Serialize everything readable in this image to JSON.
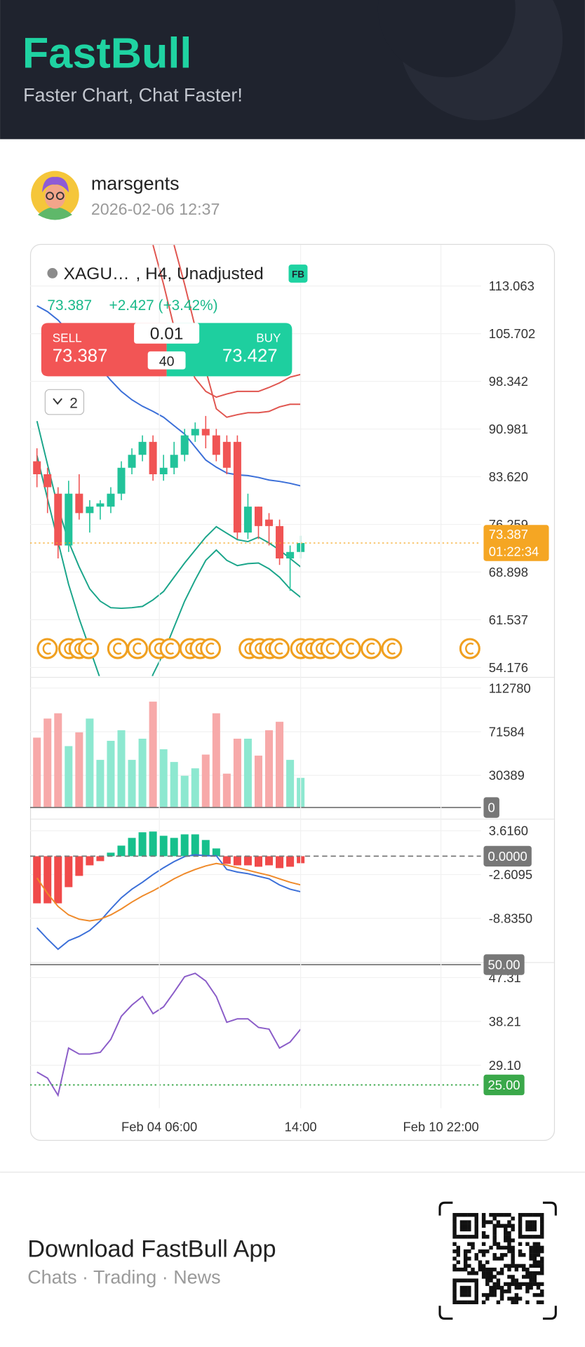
{
  "header": {
    "brand": "FastBull",
    "tagline": "Faster Chart, Chat Faster!"
  },
  "post": {
    "author": "marsgents",
    "timestamp": "2026-02-06 12:37"
  },
  "quote": {
    "symbol": "XAGU…",
    "details": ", H4, Unadjusted",
    "badge": "FB",
    "last": "73.387",
    "change": "+2.427 (+3.42%)",
    "sell_label": "SELL",
    "sell_price": "73.387",
    "buy_label": "BUY",
    "buy_price": "73.427",
    "lot": "0.01",
    "spread": "40",
    "indicator_count": "2"
  },
  "chart_data": {
    "type": "candlestick",
    "up_color": "#22c39a",
    "down_color": "#f05454",
    "xlim": [
      -0.65,
      42.1
    ],
    "xticks": [
      {
        "value": 11.6,
        "label": "Feb 04 06:00"
      },
      {
        "value": 25,
        "label": "14:00"
      },
      {
        "value": 38.3,
        "label": "Feb 10 22:00"
      }
    ],
    "ylim": [
      52.84,
      119.42
    ],
    "yticks": [
      113.063,
      105.702,
      98.342,
      90.981,
      {
        "value": 83.62,
        "label": "83.620"
      },
      76.259,
      68.898,
      61.537,
      54.176
    ],
    "last_price": {
      "value": 73.387,
      "countdown": "01:22:34",
      "color": "#f5a623"
    },
    "candles": {
      "open": [
        86,
        84,
        81,
        73,
        81,
        78,
        79,
        79,
        81,
        85,
        87,
        89,
        84,
        85,
        87,
        90,
        91,
        90,
        89,
        89,
        75,
        79,
        77,
        76,
        71,
        72
      ],
      "high": [
        88,
        85,
        82,
        83,
        84,
        80,
        80,
        82,
        86,
        88,
        90,
        90,
        87,
        89,
        91,
        92,
        93,
        91,
        90,
        90,
        81,
        79,
        78,
        77,
        73,
        74.5
      ],
      "low": [
        82,
        78,
        71,
        72,
        77,
        75,
        77,
        78,
        80,
        84,
        86,
        83,
        83,
        84,
        86,
        89,
        88,
        86,
        84,
        74,
        74,
        74,
        73,
        70,
        66,
        71
      ],
      "close": [
        84,
        82,
        73,
        81,
        78,
        79,
        79.5,
        81,
        85,
        87,
        89,
        84,
        85,
        87,
        90,
        91,
        90,
        87,
        85,
        75,
        79,
        76,
        76,
        71,
        72,
        73.387
      ]
    },
    "overlays": [
      {
        "color": "#3b6fd8",
        "values": [
          110.0,
          109.1,
          107.8,
          106.0,
          104.3,
          102.5,
          100.4,
          98.5,
          96.8,
          95.5,
          94.5,
          93.7,
          92.8,
          91.5,
          90.2,
          88.2,
          86.2,
          85.1,
          84.2,
          83.9,
          83.8,
          83.5,
          83.1,
          82.9,
          82.6,
          82.2
        ]
      },
      {
        "color": "#1aa58a",
        "values": [
          92.2,
          85.5,
          78.9,
          73.6,
          69.7,
          66.3,
          64.4,
          63.4,
          63.3,
          63.4,
          63.6,
          64.6,
          65.9,
          68.1,
          70.3,
          72.3,
          74.3,
          75.9,
          74.9,
          73.9,
          73.6,
          74.3,
          73.4,
          72.3,
          71.0,
          69.7
        ]
      },
      {
        "color": "#1aa58a",
        "values": [
          86.9,
          80.2,
          73.6,
          67.0,
          61.7,
          57.1,
          52.4,
          48.5,
          47.2,
          46.5,
          48.5,
          53.1,
          56.4,
          60.4,
          64.4,
          67.7,
          70.7,
          72.3,
          70.7,
          69.9,
          70.2,
          70.3,
          69.4,
          68.1,
          66.3,
          65.0
        ]
      },
      {
        "color": "#e0554f",
        "values": [
          null,
          null,
          null,
          null,
          null,
          null,
          null,
          null,
          null,
          null,
          null,
          119.4,
          113.3,
          106.7,
          102.1,
          98.8,
          96.8,
          95.9,
          96.4,
          96.8,
          96.8,
          96.8,
          97.4,
          98.1,
          99.0,
          99.4
        ]
      },
      {
        "color": "#e0554f",
        "values": [
          null,
          null,
          null,
          null,
          null,
          null,
          null,
          null,
          null,
          null,
          null,
          null,
          null,
          119.4,
          113.3,
          106.7,
          100.1,
          94.1,
          92.8,
          93.2,
          93.5,
          93.5,
          93.7,
          94.4,
          94.8,
          94.8
        ]
      }
    ],
    "volume": {
      "up_color": "#8de8d0",
      "down_color": "#f7a9a9",
      "ylim": [
        -10550,
        123330
      ],
      "yticks": [
        112780,
        71584,
        30389
      ],
      "levels": [
        {
          "value": 0,
          "label": "0",
          "color": "#777777",
          "style": "solid"
        }
      ],
      "values": [
        66000,
        84000,
        89000,
        58000,
        71000,
        84000,
        45000,
        63000,
        73000,
        45000,
        65000,
        100000,
        55000,
        43000,
        30000,
        37000,
        50000,
        89000,
        32000,
        65000,
        65000,
        49000,
        73000,
        81000,
        45000,
        28000
      ]
    },
    "macd": {
      "up_color": "#16c08c",
      "down_color": "#f04a4a",
      "ylim": [
        -15.06,
        5.33
      ],
      "yticks": [
        {
          "value": 3.616,
          "label": "3.6160"
        },
        -2.6095,
        {
          "value": -8.835,
          "label": "-8.8350"
        }
      ],
      "levels": [
        {
          "value": 0,
          "label": "0.0000",
          "color": "#777777",
          "style": "dashed"
        }
      ],
      "histogram": [
        -6.7,
        -6.7,
        -6.7,
        -4.4,
        -2.8,
        -1.3,
        -0.7,
        0.5,
        1.5,
        2.6,
        3.4,
        3.5,
        2.9,
        2.6,
        3.1,
        3.1,
        2.3,
        1.1,
        -1.1,
        -1.3,
        -1.3,
        -1.5,
        -1.3,
        -1.7,
        -1.5,
        -1.0
      ],
      "lines": [
        {
          "color": "#3b6fd8",
          "values": [
            -10.18,
            -11.77,
            -13.23,
            -12.01,
            -11.4,
            -10.55,
            -9.2,
            -7.5,
            -5.91,
            -4.69,
            -3.71,
            -2.61,
            -1.64,
            -0.78,
            -0.05,
            0.2,
            0.07,
            0.07,
            -1.88,
            -2.25,
            -2.49,
            -2.86,
            -3.22,
            -4.08,
            -4.69,
            -5.05
          ]
        },
        {
          "color": "#ef8a2a",
          "values": [
            -3.1,
            -5.3,
            -7.13,
            -8.35,
            -8.96,
            -9.2,
            -8.96,
            -8.35,
            -7.5,
            -6.52,
            -5.66,
            -4.93,
            -4.08,
            -3.22,
            -2.49,
            -1.88,
            -1.39,
            -1.03,
            -1.27,
            -1.64,
            -2.0,
            -2.37,
            -2.73,
            -3.22,
            -3.71,
            -4.08
          ]
        }
      ]
    },
    "rsi": {
      "color": "#8a5cc8",
      "ylim": [
        20.17,
        50.52
      ],
      "yticks": [
        47.31,
        38.21,
        {
          "value": 29.1,
          "label": "29.10"
        }
      ],
      "levels": [
        {
          "value": 50,
          "label": "50.00",
          "color": "#777777",
          "style": "solid"
        },
        {
          "value": 25,
          "label": "25.00",
          "color": "#3aa84a",
          "style": "dotted"
        }
      ],
      "values": [
        27.67,
        26.42,
        22.85,
        32.67,
        31.42,
        31.42,
        31.78,
        34.45,
        39.27,
        41.6,
        43.38,
        39.81,
        41.24,
        44.27,
        47.49,
        48.2,
        46.6,
        43.38,
        38.03,
        38.74,
        38.74,
        36.95,
        36.6,
        32.67,
        33.92,
        36.6
      ]
    }
  },
  "footer": {
    "title": "Download FastBull App",
    "subtitle": "Chats · Trading · News"
  }
}
